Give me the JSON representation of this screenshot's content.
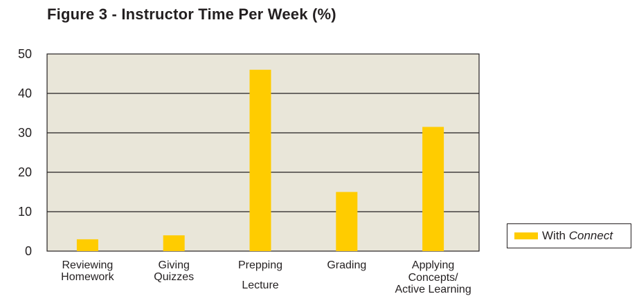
{
  "title": "Figure 3 - Instructor Time Per Week (%)",
  "colors": {
    "plot_background": "#e9e6d9",
    "bar": "#ffcc00",
    "gridline": "#231f20"
  },
  "legend": {
    "prefix": "With ",
    "emphasis": "Connect",
    "placement": "right"
  },
  "chart_data": {
    "type": "bar",
    "title": "Figure 3 - Instructor Time Per Week (%)",
    "categories": [
      [
        "Reviewing",
        "Homework"
      ],
      [
        "Giving",
        "Quizzes"
      ],
      [
        "Prepping",
        "Lecture"
      ],
      [
        "Grading"
      ],
      [
        "Applying",
        "Concepts/",
        "Active Learning"
      ]
    ],
    "series": [
      {
        "name": "With Connect",
        "values": [
          3,
          4,
          46,
          15,
          31.5
        ]
      }
    ],
    "ylim": [
      0,
      50
    ],
    "yticks": [
      0,
      10,
      20,
      30,
      40,
      50
    ],
    "grid": true,
    "legend_position": "right"
  }
}
